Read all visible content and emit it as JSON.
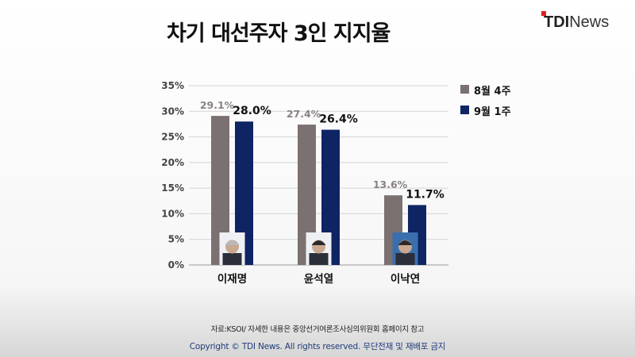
{
  "brand": {
    "logo_prefix": "TDI",
    "logo_suffix": "News",
    "accent": "#e02020"
  },
  "chart_data": {
    "type": "bar",
    "title": "차기 대선주자 3인 지지율",
    "categories": [
      "이재명",
      "윤석열",
      "이낙연"
    ],
    "series": [
      {
        "name": "8월 4주",
        "color": "#7b7171",
        "values": [
          29.1,
          27.4,
          13.6
        ],
        "labels": [
          "29.1%",
          "27.4%",
          "13.6%"
        ]
      },
      {
        "name": "9월 1주",
        "color": "#0f2463",
        "values": [
          28.0,
          26.4,
          11.7
        ],
        "labels": [
          "28.0%",
          "26.4%",
          "11.7%"
        ]
      }
    ],
    "yticks": [
      0,
      5,
      10,
      15,
      20,
      25,
      30,
      35
    ],
    "ytick_labels": [
      "0%",
      "5%",
      "10%",
      "15%",
      "20%",
      "25%",
      "30%",
      "35%"
    ],
    "ylim": [
      0,
      35
    ],
    "grid": true,
    "legend": "right"
  },
  "footer": {
    "source": "자료:KSOI/ 자세한 내용은 중앙선거여론조사심의위원회 홈페이지 참고",
    "copyright": "Copyright © TDI News. All rights reserved. 무단전재 및 재배포 금지"
  }
}
